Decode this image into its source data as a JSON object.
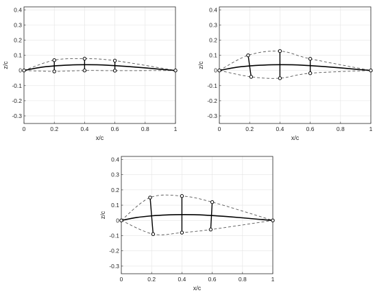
{
  "figure": {
    "xlabel": "x/c",
    "ylabel": "z/c",
    "xticks": [
      0,
      0.2,
      0.4,
      0.6,
      0.8,
      1
    ],
    "xtick_labels": [
      "0",
      "0.2",
      "0.4",
      "0.6",
      "0.8",
      "1"
    ],
    "yticks": [
      -0.3,
      -0.2,
      -0.1,
      0,
      0.1,
      0.2,
      0.3,
      0.4
    ],
    "ytick_labels": [
      "-0.3",
      "-0.2",
      "-0.1",
      "0",
      "0.1",
      "0.2",
      "0.3",
      "0.4"
    ],
    "colors": {
      "camber": "#000000",
      "surface": "#555555",
      "grid": "#e3e3e3",
      "axes": "#262626"
    }
  },
  "chart_data": [
    {
      "type": "line",
      "position": "top-left",
      "xlabel": "x/c",
      "ylabel": "z/c",
      "xlim": [
        0,
        1
      ],
      "ylim": [
        -0.35,
        0.42
      ],
      "grid": true,
      "camber": {
        "x": [
          0,
          0.1,
          0.2,
          0.3,
          0.4,
          0.5,
          0.6,
          0.7,
          0.8,
          0.9,
          1.0
        ],
        "y": [
          0,
          0.019,
          0.03,
          0.036,
          0.038,
          0.037,
          0.032,
          0.025,
          0.017,
          0.008,
          0
        ]
      },
      "upper_surface": {
        "x": [
          0,
          0.2,
          0.4,
          0.6,
          1.0
        ],
        "y": [
          0,
          0.068,
          0.078,
          0.065,
          0
        ]
      },
      "lower_surface": {
        "x": [
          0,
          0.2,
          0.4,
          0.6,
          1.0
        ],
        "y": [
          0,
          -0.006,
          0.0,
          -0.001,
          0
        ]
      },
      "sections": [
        {
          "x_upper": 0.2,
          "z_upper": 0.068,
          "x_lower": 0.2,
          "z_lower": -0.006
        },
        {
          "x_upper": 0.4,
          "z_upper": 0.078,
          "x_lower": 0.4,
          "z_lower": 0.0
        },
        {
          "x_upper": 0.6,
          "z_upper": 0.065,
          "x_lower": 0.6,
          "z_lower": -0.001
        }
      ]
    },
    {
      "type": "line",
      "position": "top-right",
      "xlabel": "x/c",
      "ylabel": "z/c",
      "xlim": [
        0,
        1
      ],
      "ylim": [
        -0.35,
        0.42
      ],
      "grid": true,
      "camber": {
        "x": [
          0,
          0.1,
          0.2,
          0.3,
          0.4,
          0.5,
          0.6,
          0.7,
          0.8,
          0.9,
          1.0
        ],
        "y": [
          0,
          0.019,
          0.03,
          0.036,
          0.038,
          0.037,
          0.032,
          0.025,
          0.017,
          0.008,
          0
        ]
      },
      "upper_surface": {
        "x": [
          0,
          0.19,
          0.4,
          0.6,
          1.0
        ],
        "y": [
          0,
          0.1,
          0.128,
          0.077,
          0
        ]
      },
      "lower_surface": {
        "x": [
          0,
          0.21,
          0.4,
          0.6,
          1.0
        ],
        "y": [
          0,
          -0.042,
          -0.051,
          -0.018,
          0
        ]
      },
      "sections": [
        {
          "x_upper": 0.19,
          "z_upper": 0.1,
          "x_lower": 0.21,
          "z_lower": -0.042
        },
        {
          "x_upper": 0.4,
          "z_upper": 0.128,
          "x_lower": 0.4,
          "z_lower": -0.051
        },
        {
          "x_upper": 0.6,
          "z_upper": 0.077,
          "x_lower": 0.6,
          "z_lower": -0.018
        }
      ]
    },
    {
      "type": "line",
      "position": "bottom-center",
      "xlabel": "x/c",
      "ylabel": "z/c",
      "xlim": [
        0,
        1
      ],
      "ylim": [
        -0.35,
        0.42
      ],
      "grid": true,
      "camber": {
        "x": [
          0,
          0.1,
          0.2,
          0.3,
          0.4,
          0.5,
          0.6,
          0.7,
          0.8,
          0.9,
          1.0
        ],
        "y": [
          0,
          0.019,
          0.03,
          0.036,
          0.038,
          0.037,
          0.032,
          0.025,
          0.017,
          0.008,
          0
        ]
      },
      "upper_surface": {
        "x": [
          0,
          0.19,
          0.4,
          0.6,
          1.0
        ],
        "y": [
          0,
          0.15,
          0.16,
          0.12,
          0
        ]
      },
      "lower_surface": {
        "x": [
          0,
          0.21,
          0.4,
          0.59,
          1.0
        ],
        "y": [
          0,
          -0.09,
          -0.08,
          -0.06,
          0
        ]
      },
      "sections": [
        {
          "x_upper": 0.19,
          "z_upper": 0.15,
          "x_lower": 0.21,
          "z_lower": -0.09
        },
        {
          "x_upper": 0.4,
          "z_upper": 0.16,
          "x_lower": 0.4,
          "z_lower": -0.08
        },
        {
          "x_upper": 0.6,
          "z_upper": 0.12,
          "x_lower": 0.59,
          "z_lower": -0.06
        }
      ]
    }
  ]
}
